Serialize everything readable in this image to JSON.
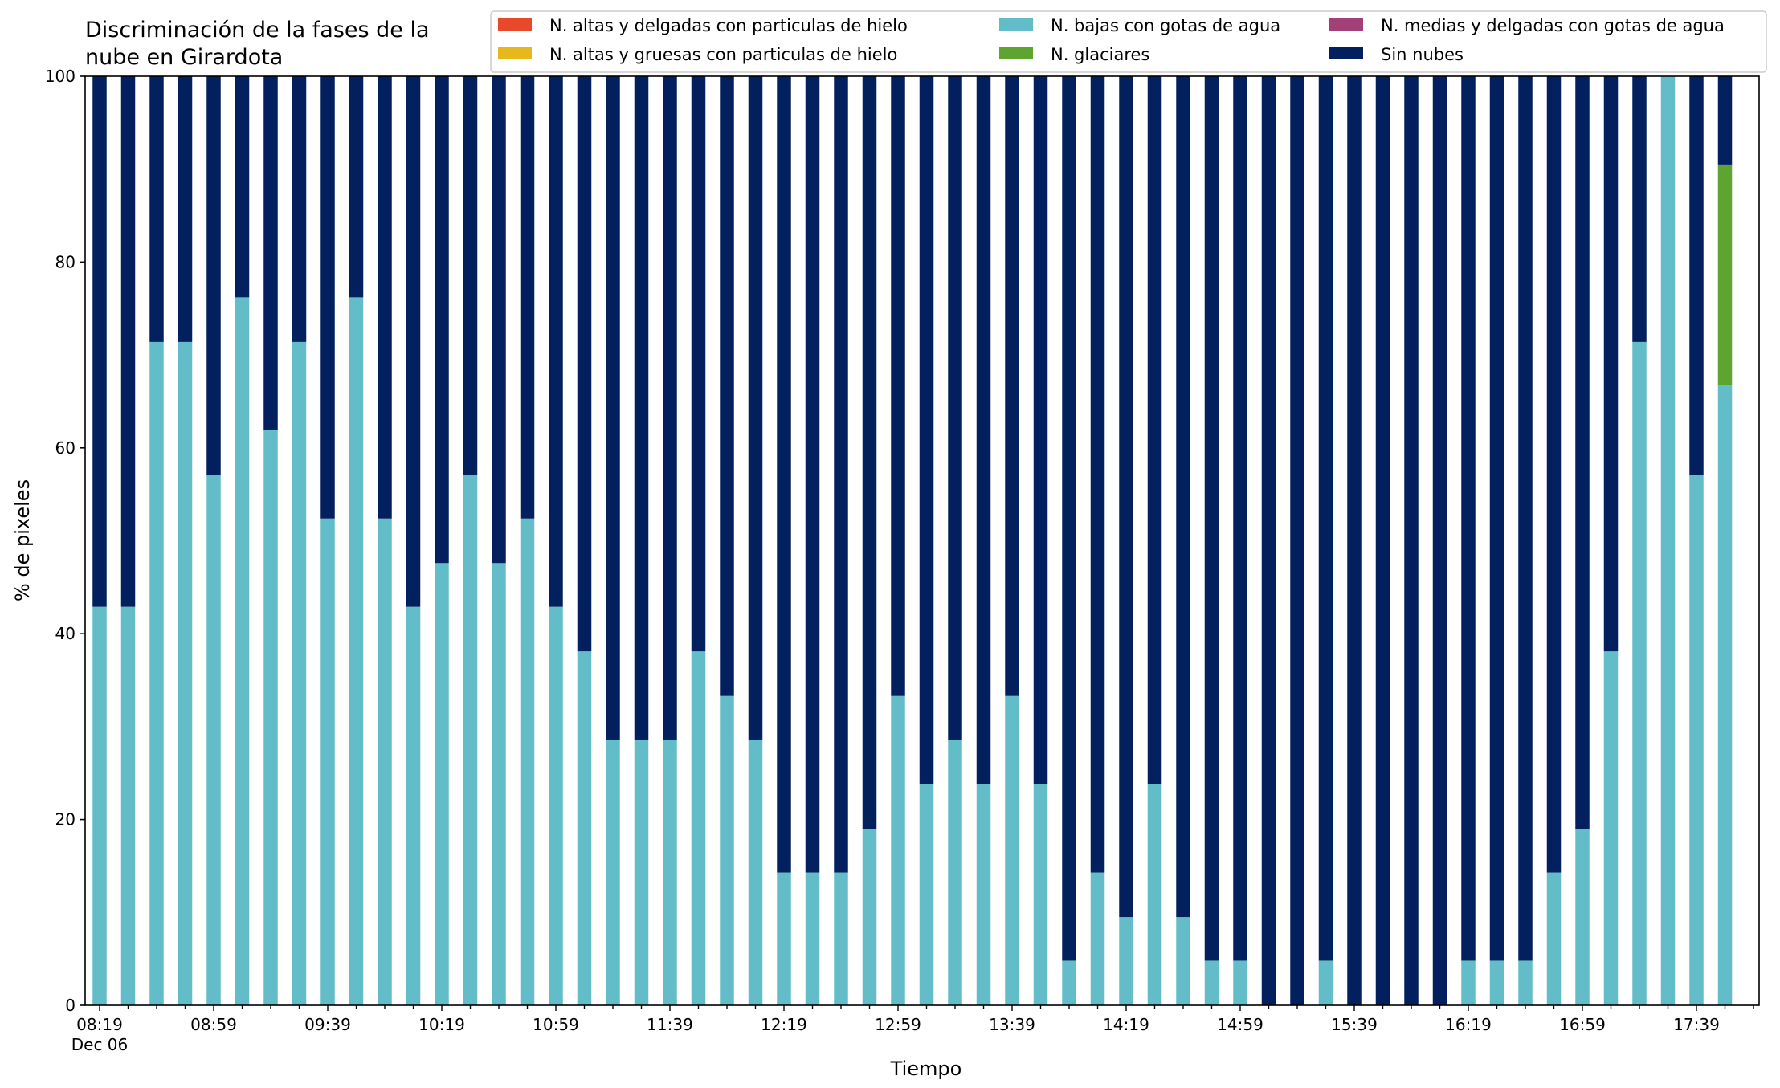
{
  "chart_data": {
    "type": "bar",
    "stacked": true,
    "title_lines": [
      "Discriminación de la fases de la",
      "nube en Girardota"
    ],
    "xlabel": "Tiempo",
    "ylabel": "% de pixeles",
    "ylim": [
      0,
      100
    ],
    "yticks": [
      0,
      20,
      40,
      60,
      80,
      100
    ],
    "grid": false,
    "legend_placement": "top-right",
    "bar_interval_minutes": 10,
    "x_tick_labels": [
      "08:19",
      "08:59",
      "09:39",
      "10:19",
      "10:59",
      "11:39",
      "12:19",
      "12:59",
      "13:39",
      "14:19",
      "14:59",
      "15:39",
      "16:19",
      "16:59",
      "17:39"
    ],
    "x_tick_sublabel": "Dec 06",
    "categories": [
      "08:19",
      "08:29",
      "08:39",
      "08:49",
      "08:59",
      "09:09",
      "09:19",
      "09:29",
      "09:39",
      "09:49",
      "09:59",
      "10:09",
      "10:19",
      "10:29",
      "10:39",
      "10:49",
      "10:59",
      "11:09",
      "11:19",
      "11:29",
      "11:39",
      "11:49",
      "11:59",
      "12:09",
      "12:19",
      "12:29",
      "12:39",
      "12:49",
      "12:59",
      "13:09",
      "13:19",
      "13:29",
      "13:39",
      "13:49",
      "13:59",
      "14:09",
      "14:19",
      "14:29",
      "14:39",
      "14:49",
      "14:59",
      "15:09",
      "15:19",
      "15:29",
      "15:39",
      "15:49",
      "15:59",
      "16:09",
      "16:19",
      "16:29",
      "16:39",
      "16:49",
      "16:59",
      "17:09",
      "17:19",
      "17:29",
      "17:39",
      "17:49"
    ],
    "series": [
      {
        "name": "N. altas y delgadas con particulas de hielo",
        "color": "#e8492b",
        "values": [
          0,
          0,
          0,
          0,
          0,
          0,
          0,
          0,
          0,
          0,
          0,
          0,
          0,
          0,
          0,
          0,
          0,
          0,
          0,
          0,
          0,
          0,
          0,
          0,
          0,
          0,
          0,
          0,
          0,
          0,
          0,
          0,
          0,
          0,
          0,
          0,
          0,
          0,
          0,
          0,
          0,
          0,
          0,
          0,
          0,
          0,
          0,
          0,
          0,
          0,
          0,
          0,
          0,
          0,
          0,
          0,
          0,
          0
        ]
      },
      {
        "name": "N. altas y gruesas con particulas de hielo",
        "color": "#e6b81e",
        "values": [
          0,
          0,
          0,
          0,
          0,
          0,
          0,
          0,
          0,
          0,
          0,
          0,
          0,
          0,
          0,
          0,
          0,
          0,
          0,
          0,
          0,
          0,
          0,
          0,
          0,
          0,
          0,
          0,
          0,
          0,
          0,
          0,
          0,
          0,
          0,
          0,
          0,
          0,
          0,
          0,
          0,
          0,
          0,
          0,
          0,
          0,
          0,
          0,
          0,
          0,
          0,
          0,
          0,
          0,
          0,
          0,
          0,
          0
        ]
      },
      {
        "name": "N. bajas con gotas de agua",
        "color": "#63bdc8",
        "values": [
          42.9,
          42.9,
          71.4,
          71.4,
          57.1,
          76.2,
          61.9,
          71.4,
          52.4,
          76.2,
          52.4,
          42.9,
          47.6,
          57.1,
          47.6,
          52.4,
          42.9,
          38.1,
          28.6,
          28.6,
          28.6,
          38.1,
          33.3,
          28.6,
          14.3,
          14.3,
          14.3,
          19.0,
          33.3,
          23.8,
          28.6,
          23.8,
          33.3,
          23.8,
          4.8,
          14.3,
          9.5,
          23.8,
          9.5,
          4.8,
          4.8,
          0,
          0,
          4.8,
          0,
          0,
          0,
          0,
          4.8,
          4.8,
          4.8,
          14.3,
          19.0,
          38.1,
          71.4,
          100,
          57.1,
          66.7
        ]
      },
      {
        "name": "N. glaciares",
        "color": "#5ea431",
        "values": [
          0,
          0,
          0,
          0,
          0,
          0,
          0,
          0,
          0,
          0,
          0,
          0,
          0,
          0,
          0,
          0,
          0,
          0,
          0,
          0,
          0,
          0,
          0,
          0,
          0,
          0,
          0,
          0,
          0,
          0,
          0,
          0,
          0,
          0,
          0,
          0,
          0,
          0,
          0,
          0,
          0,
          0,
          0,
          0,
          0,
          0,
          0,
          0,
          0,
          0,
          0,
          0,
          0,
          0,
          0,
          0,
          0,
          23.8
        ]
      },
      {
        "name": "N. medias y delgadas con gotas de agua",
        "color": "#a24077",
        "values": [
          0,
          0,
          0,
          0,
          0,
          0,
          0,
          0,
          0,
          0,
          0,
          0,
          0,
          0,
          0,
          0,
          0,
          0,
          0,
          0,
          0,
          0,
          0,
          0,
          0,
          0,
          0,
          0,
          0,
          0,
          0,
          0,
          0,
          0,
          0,
          0,
          0,
          0,
          0,
          0,
          0,
          0,
          0,
          0,
          0,
          0,
          0,
          0,
          0,
          0,
          0,
          0,
          0,
          0,
          0,
          0,
          0,
          0
        ]
      },
      {
        "name": "Sin nubes",
        "color": "#03205e",
        "values": [
          57.1,
          57.1,
          28.6,
          28.6,
          42.9,
          23.8,
          38.1,
          28.6,
          47.6,
          23.8,
          47.6,
          57.1,
          52.4,
          42.9,
          52.4,
          47.6,
          57.1,
          61.9,
          71.4,
          71.4,
          71.4,
          61.9,
          66.7,
          71.4,
          85.7,
          85.7,
          85.7,
          81.0,
          66.7,
          76.2,
          71.4,
          76.2,
          66.7,
          76.2,
          95.2,
          85.7,
          90.5,
          76.2,
          90.5,
          95.2,
          95.2,
          100,
          100,
          95.2,
          100,
          100,
          100,
          100,
          95.2,
          95.2,
          95.2,
          85.7,
          81.0,
          61.9,
          28.6,
          0,
          42.9,
          9.5
        ]
      }
    ],
    "legend_order": [
      0,
      1,
      2,
      3,
      4,
      5
    ]
  }
}
